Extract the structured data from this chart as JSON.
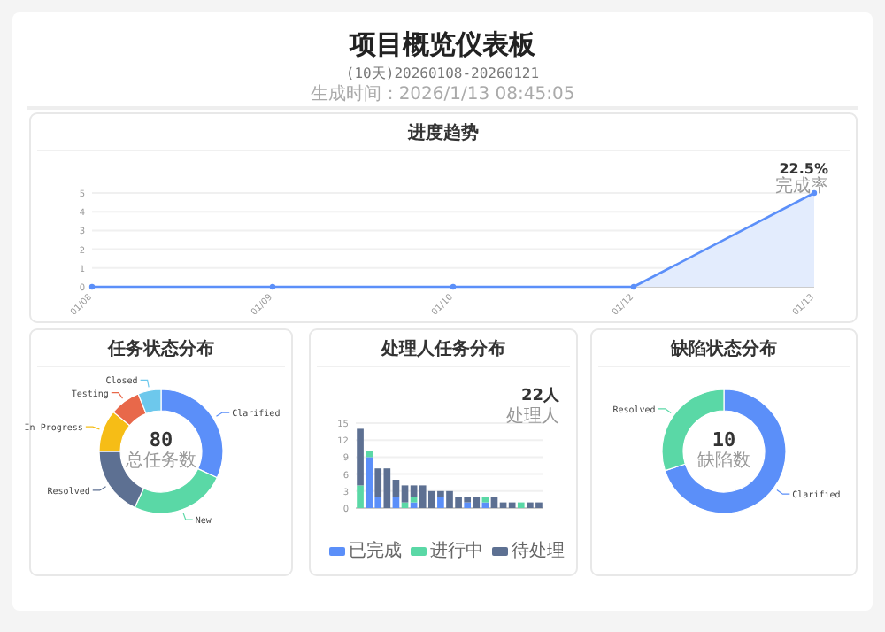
{
  "chart_data": [
    {
      "type": "other",
      "title": "项目概览仪表板",
      "subtitle": "(10天)20260108-20260121",
      "annotations": [
        "生成时间：2026/1/13 08:45:05"
      ]
    },
    {
      "type": "line",
      "title": "进度趋势",
      "categories": [
        "01/08",
        "01/09",
        "01/10",
        "01/12",
        "01/13"
      ],
      "values": [
        0,
        0,
        0,
        0,
        5
      ],
      "color": "#5b8ff9",
      "ylim": [
        0,
        5
      ],
      "yticks": [
        0,
        1,
        2,
        3,
        4,
        5
      ],
      "grid": "y",
      "marker": "circle",
      "annotations": [
        "22.5%",
        "完成率"
      ]
    },
    {
      "type": "donut",
      "title": "任务状态分布",
      "categories": [
        "Clarified",
        "New",
        "Resolved",
        "In Progress",
        "Testing",
        "Closed"
      ],
      "values": [
        32,
        25,
        18,
        11,
        8,
        6
      ],
      "colors": [
        "#5b8ff9",
        "#5ad8a6",
        "#5d7092",
        "#f6bd16",
        "#e8684a",
        "#6dc8ec"
      ],
      "annotations": [
        "80",
        "总任务数"
      ]
    },
    {
      "type": "bar",
      "title": "处理人任务分布",
      "stacked": true,
      "categories": [
        null,
        null,
        null,
        null,
        null,
        null,
        null,
        null,
        null,
        null,
        null,
        null,
        null,
        null,
        null,
        null,
        null,
        null,
        null,
        null,
        null
      ],
      "ylim": [
        0,
        15
      ],
      "yticks": [
        0,
        3,
        6,
        9,
        12,
        15
      ],
      "grid": "y",
      "legend": "bottom",
      "annotations": [
        "22人",
        "处理人"
      ],
      "series": [
        {
          "name": "已完成",
          "color": "#5b8ff9",
          "values": [
            0,
            9,
            2,
            0,
            2,
            0,
            1,
            0,
            0,
            2,
            0,
            0,
            1,
            0,
            1,
            0,
            0,
            0,
            0,
            0,
            0
          ]
        },
        {
          "name": "进行中",
          "color": "#5ad8a6",
          "values": [
            4,
            1,
            0,
            0,
            0,
            1,
            1,
            0,
            0,
            0,
            0,
            0,
            0,
            0,
            1,
            0,
            0,
            0,
            1,
            0,
            0
          ]
        },
        {
          "name": "待处理",
          "color": "#5d7092",
          "values": [
            10,
            0,
            5,
            7,
            3,
            3,
            2,
            4,
            3,
            1,
            3,
            2,
            1,
            2,
            0,
            2,
            1,
            1,
            0,
            1,
            1
          ]
        }
      ]
    },
    {
      "type": "donut",
      "title": "缺陷状态分布",
      "categories": [
        "Clarified",
        "Resolved"
      ],
      "values": [
        70,
        30
      ],
      "colors": [
        "#5b8ff9",
        "#5ad8a6"
      ],
      "annotations": [
        "10",
        "缺陷数"
      ]
    }
  ]
}
